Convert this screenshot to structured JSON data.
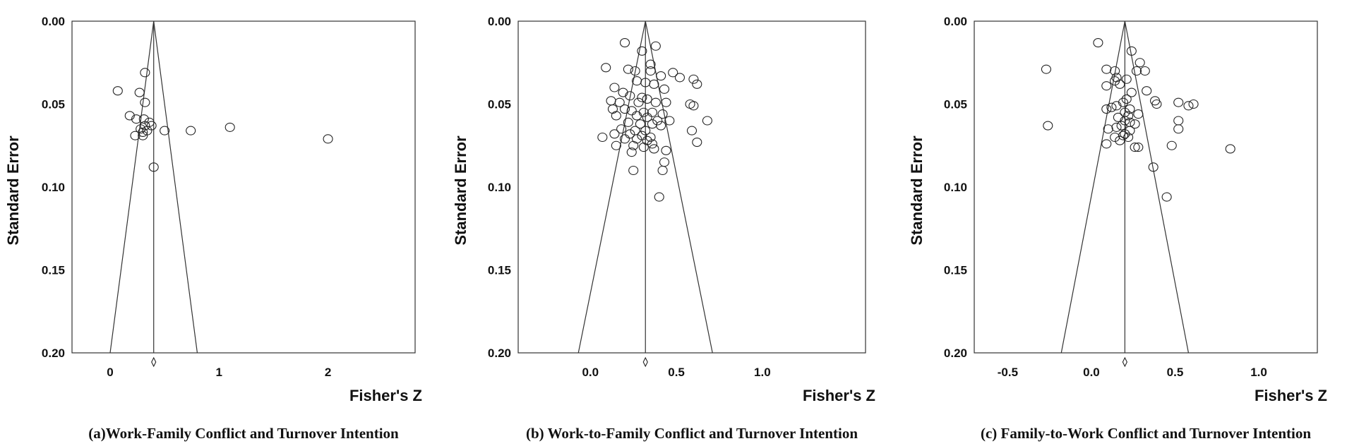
{
  "chart_data": [
    {
      "type": "scatter",
      "caption": "(a)Work-Family Conflict and Turnover Intention",
      "xlabel": "Fisher's Z",
      "ylabel": "Standard Error",
      "xlim": [
        -0.35,
        2.8
      ],
      "ylim": [
        0.0,
        0.2
      ],
      "y_inverted": true,
      "x_ticks": [
        0,
        1,
        2
      ],
      "x_tick_labels": [
        "0",
        "1",
        "2"
      ],
      "y_ticks": [
        0.0,
        0.05,
        0.1,
        0.15,
        0.2
      ],
      "y_tick_labels": [
        "0.00",
        "0.05",
        "0.10",
        "0.15",
        "0.20"
      ],
      "pooled_effect": 0.4,
      "funnel_bottom": [
        0.0,
        0.8
      ],
      "points": [
        [
          0.32,
          0.031
        ],
        [
          0.07,
          0.042
        ],
        [
          0.27,
          0.043
        ],
        [
          0.32,
          0.049
        ],
        [
          0.18,
          0.057
        ],
        [
          0.24,
          0.059
        ],
        [
          0.31,
          0.059
        ],
        [
          0.36,
          0.061
        ],
        [
          0.32,
          0.063
        ],
        [
          0.38,
          0.063
        ],
        [
          0.28,
          0.065
        ],
        [
          0.34,
          0.066
        ],
        [
          0.3,
          0.067
        ],
        [
          0.23,
          0.069
        ],
        [
          0.3,
          0.069
        ],
        [
          0.4,
          0.088
        ],
        [
          0.5,
          0.066
        ],
        [
          0.74,
          0.066
        ],
        [
          1.1,
          0.064
        ],
        [
          2.0,
          0.071
        ]
      ]
    },
    {
      "type": "scatter",
      "caption": "(b) Work-to-Family Conflict and Turnover Intention",
      "xlabel": "Fisher's Z",
      "ylabel": "Standard Error",
      "xlim": [
        -0.42,
        1.6
      ],
      "ylim": [
        0.0,
        0.2
      ],
      "y_inverted": true,
      "x_ticks": [
        0.0,
        0.5,
        1.0
      ],
      "x_tick_labels": [
        "0.0",
        "0.5",
        "1.0"
      ],
      "y_ticks": [
        0.0,
        0.05,
        0.1,
        0.15,
        0.2
      ],
      "y_tick_labels": [
        "0.00",
        "0.05",
        "0.10",
        "0.15",
        "0.20"
      ],
      "pooled_effect": 0.32,
      "funnel_bottom": [
        -0.07,
        0.71
      ],
      "points": [
        [
          0.2,
          0.013
        ],
        [
          0.38,
          0.015
        ],
        [
          0.3,
          0.018
        ],
        [
          0.35,
          0.026
        ],
        [
          0.09,
          0.028
        ],
        [
          0.22,
          0.029
        ],
        [
          0.26,
          0.03
        ],
        [
          0.35,
          0.03
        ],
        [
          0.41,
          0.033
        ],
        [
          0.48,
          0.031
        ],
        [
          0.52,
          0.034
        ],
        [
          0.6,
          0.035
        ],
        [
          0.62,
          0.038
        ],
        [
          0.27,
          0.036
        ],
        [
          0.32,
          0.037
        ],
        [
          0.37,
          0.038
        ],
        [
          0.43,
          0.041
        ],
        [
          0.14,
          0.04
        ],
        [
          0.19,
          0.043
        ],
        [
          0.23,
          0.045
        ],
        [
          0.3,
          0.046
        ],
        [
          0.33,
          0.047
        ],
        [
          0.12,
          0.048
        ],
        [
          0.17,
          0.049
        ],
        [
          0.28,
          0.049
        ],
        [
          0.38,
          0.049
        ],
        [
          0.44,
          0.049
        ],
        [
          0.58,
          0.05
        ],
        [
          0.6,
          0.051
        ],
        [
          0.13,
          0.053
        ],
        [
          0.2,
          0.053
        ],
        [
          0.24,
          0.054
        ],
        [
          0.31,
          0.055
        ],
        [
          0.36,
          0.055
        ],
        [
          0.42,
          0.056
        ],
        [
          0.15,
          0.057
        ],
        [
          0.27,
          0.057
        ],
        [
          0.33,
          0.058
        ],
        [
          0.39,
          0.06
        ],
        [
          0.46,
          0.06
        ],
        [
          0.68,
          0.06
        ],
        [
          0.22,
          0.061
        ],
        [
          0.29,
          0.062
        ],
        [
          0.36,
          0.062
        ],
        [
          0.41,
          0.063
        ],
        [
          0.18,
          0.065
        ],
        [
          0.26,
          0.066
        ],
        [
          0.32,
          0.066
        ],
        [
          0.59,
          0.066
        ],
        [
          0.14,
          0.068
        ],
        [
          0.23,
          0.068
        ],
        [
          0.3,
          0.069
        ],
        [
          0.35,
          0.07
        ],
        [
          0.07,
          0.07
        ],
        [
          0.2,
          0.071
        ],
        [
          0.27,
          0.071
        ],
        [
          0.33,
          0.072
        ],
        [
          0.62,
          0.073
        ],
        [
          0.36,
          0.074
        ],
        [
          0.15,
          0.075
        ],
        [
          0.25,
          0.075
        ],
        [
          0.31,
          0.076
        ],
        [
          0.37,
          0.077
        ],
        [
          0.44,
          0.078
        ],
        [
          0.24,
          0.079
        ],
        [
          0.43,
          0.085
        ],
        [
          0.25,
          0.09
        ],
        [
          0.42,
          0.09
        ],
        [
          0.4,
          0.106
        ]
      ]
    },
    {
      "type": "scatter",
      "caption": "(c) Family-to-Work Conflict and Turnover Intention",
      "xlabel": "Fisher's Z",
      "ylabel": "Standard Error",
      "xlim": [
        -0.7,
        1.35
      ],
      "ylim": [
        0.0,
        0.2
      ],
      "y_inverted": true,
      "x_ticks": [
        -0.5,
        0.0,
        0.5,
        1.0
      ],
      "x_tick_labels": [
        "-0.5",
        "0.0",
        "0.5",
        "1.0"
      ],
      "y_ticks": [
        0.0,
        0.05,
        0.1,
        0.15,
        0.2
      ],
      "y_tick_labels": [
        "0.00",
        "0.05",
        "0.10",
        "0.15",
        "0.20"
      ],
      "pooled_effect": 0.2,
      "funnel_bottom": [
        -0.18,
        0.58
      ],
      "points": [
        [
          0.04,
          0.013
        ],
        [
          0.24,
          0.018
        ],
        [
          0.29,
          0.025
        ],
        [
          0.32,
          0.03
        ],
        [
          0.27,
          0.03
        ],
        [
          0.09,
          0.029
        ],
        [
          -0.27,
          0.029
        ],
        [
          0.14,
          0.03
        ],
        [
          0.15,
          0.034
        ],
        [
          0.14,
          0.036
        ],
        [
          0.21,
          0.035
        ],
        [
          0.09,
          0.039
        ],
        [
          0.17,
          0.038
        ],
        [
          0.33,
          0.042
        ],
        [
          0.24,
          0.043
        ],
        [
          0.38,
          0.048
        ],
        [
          0.39,
          0.05
        ],
        [
          0.52,
          0.049
        ],
        [
          0.58,
          0.051
        ],
        [
          0.61,
          0.05
        ],
        [
          0.19,
          0.049
        ],
        [
          0.21,
          0.047
        ],
        [
          0.15,
          0.051
        ],
        [
          0.12,
          0.052
        ],
        [
          0.09,
          0.053
        ],
        [
          0.23,
          0.053
        ],
        [
          0.2,
          0.055
        ],
        [
          0.22,
          0.057
        ],
        [
          0.28,
          0.056
        ],
        [
          0.16,
          0.058
        ],
        [
          0.2,
          0.06
        ],
        [
          0.52,
          0.06
        ],
        [
          0.23,
          0.061
        ],
        [
          0.26,
          0.062
        ],
        [
          0.18,
          0.063
        ],
        [
          0.15,
          0.064
        ],
        [
          0.1,
          0.065
        ],
        [
          0.52,
          0.065
        ],
        [
          -0.26,
          0.063
        ],
        [
          0.23,
          0.066
        ],
        [
          0.2,
          0.068
        ],
        [
          0.19,
          0.069
        ],
        [
          0.14,
          0.07
        ],
        [
          0.22,
          0.07
        ],
        [
          0.17,
          0.072
        ],
        [
          0.09,
          0.074
        ],
        [
          0.26,
          0.076
        ],
        [
          0.28,
          0.076
        ],
        [
          0.48,
          0.075
        ],
        [
          0.83,
          0.077
        ],
        [
          0.37,
          0.088
        ],
        [
          0.45,
          0.106
        ]
      ]
    }
  ]
}
